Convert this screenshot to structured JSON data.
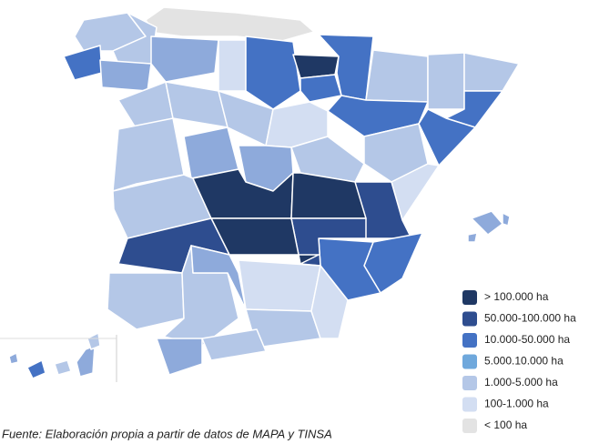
{
  "legend": [
    {
      "label": "> 100.000 ha",
      "color": "#1f3864"
    },
    {
      "label": "50.000-100.000 ha",
      "color": "#2e4d8f"
    },
    {
      "label": "10.000-50.000 ha",
      "color": "#4472c4"
    },
    {
      "label": "5.000.10.000 ha",
      "color": "#6fa8dc"
    },
    {
      "label": "1.000-5.000 ha",
      "color": "#b4c7e7"
    },
    {
      "label": "100-1.000 ha",
      "color": "#d3def2"
    },
    {
      "label": "< 100 ha",
      "color": "#e3e3e3"
    }
  ],
  "source": "Fuente: Elaboración propia a partir de datos de MAPA y TINSA"
}
